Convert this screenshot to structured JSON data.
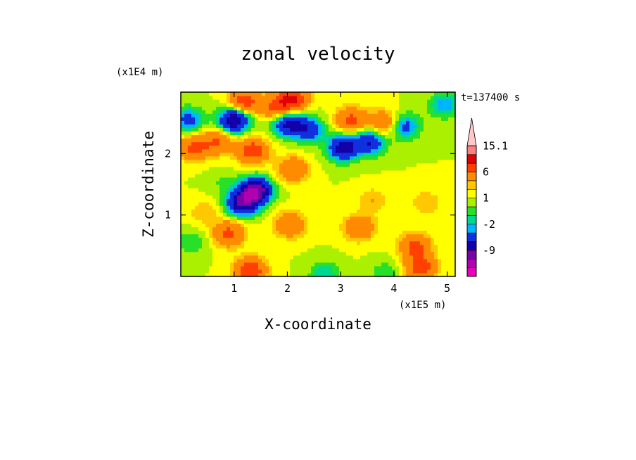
{
  "chart_data": {
    "type": "heatmap",
    "title": "zonal velocity",
    "xlabel": "X-coordinate",
    "ylabel": "Z-coordinate",
    "x_unit": "(x1E5 m)",
    "y_unit": "(x1E4 m)",
    "time_label": "t=137400 s",
    "xlim": [
      0,
      5.15
    ],
    "ylim": [
      0,
      3.0
    ],
    "x_ticks": [
      1,
      2,
      3,
      4,
      5
    ],
    "x_tick_labels": [
      "1",
      "2",
      "3",
      "4",
      "5"
    ],
    "y_ticks": [
      1,
      2
    ],
    "y_tick_labels": [
      "1",
      "2"
    ],
    "colorbar": {
      "levels": [
        -15,
        -12,
        -9,
        -6,
        -3,
        -2,
        -1,
        0,
        1,
        2,
        3,
        6,
        9,
        12,
        15.1
      ],
      "labels": [
        {
          "text": "15.1",
          "value": 15.1
        },
        {
          "text": "6",
          "value": 6
        },
        {
          "text": "1",
          "value": 1
        },
        {
          "text": "-2",
          "value": -2
        },
        {
          "text": "-9",
          "value": -9
        }
      ],
      "colors": [
        "#e800b8",
        "#b000b0",
        "#7a00a8",
        "#1400a8",
        "#1030e0",
        "#00b4ff",
        "#00d890",
        "#28e028",
        "#aaf000",
        "#ffff00",
        "#ffc800",
        "#ff8c00",
        "#ff4000",
        "#e00000",
        "#ff7f7f",
        "#ffc8c8"
      ]
    },
    "features": [
      {
        "x": 1.0,
        "z": 2.55,
        "u": -10
      },
      {
        "x": 2.0,
        "z": 2.5,
        "u": -8
      },
      {
        "x": 2.4,
        "z": 2.4,
        "u": -6
      },
      {
        "x": 3.05,
        "z": 2.1,
        "u": -9
      },
      {
        "x": 3.55,
        "z": 2.2,
        "u": -7
      },
      {
        "x": 4.2,
        "z": 2.45,
        "u": -5
      },
      {
        "x": 4.95,
        "z": 2.8,
        "u": -4
      },
      {
        "x": 1.15,
        "z": 1.2,
        "u": -10
      },
      {
        "x": 1.4,
        "z": 1.4,
        "u": -13
      },
      {
        "x": 0.15,
        "z": 2.55,
        "u": -5
      },
      {
        "x": 1.2,
        "z": 2.85,
        "u": 7
      },
      {
        "x": 1.8,
        "z": 2.75,
        "u": 6
      },
      {
        "x": 2.1,
        "z": 2.9,
        "u": 8
      },
      {
        "x": 3.2,
        "z": 2.55,
        "u": 6
      },
      {
        "x": 3.8,
        "z": 2.5,
        "u": 5
      },
      {
        "x": 0.25,
        "z": 2.1,
        "u": 6
      },
      {
        "x": 0.7,
        "z": 2.2,
        "u": 5
      },
      {
        "x": 1.35,
        "z": 2.05,
        "u": 7
      },
      {
        "x": 2.1,
        "z": 1.75,
        "u": 5
      },
      {
        "x": 0.9,
        "z": 0.7,
        "u": 6
      },
      {
        "x": 2.05,
        "z": 0.85,
        "u": 5
      },
      {
        "x": 3.35,
        "z": 0.8,
        "u": 5
      },
      {
        "x": 4.4,
        "z": 0.5,
        "u": 6
      },
      {
        "x": 4.5,
        "z": 0.15,
        "u": 7
      },
      {
        "x": 1.3,
        "z": 0.1,
        "u": 8
      },
      {
        "x": 0.45,
        "z": 1.05,
        "u": 2
      },
      {
        "x": 3.6,
        "z": 1.25,
        "u": 2
      },
      {
        "x": 4.6,
        "z": 1.2,
        "u": 2
      },
      {
        "x": 0.2,
        "z": 0.55,
        "u": -2
      },
      {
        "x": 2.7,
        "z": 0.05,
        "u": -3
      },
      {
        "x": 3.85,
        "z": 0.05,
        "u": -2
      },
      {
        "x": 2.2,
        "z": 1.3,
        "u": 0
      },
      {
        "x": 4.9,
        "z": 2.0,
        "u": 0
      },
      {
        "x": 0.75,
        "z": 1.55,
        "u": -1
      }
    ]
  }
}
